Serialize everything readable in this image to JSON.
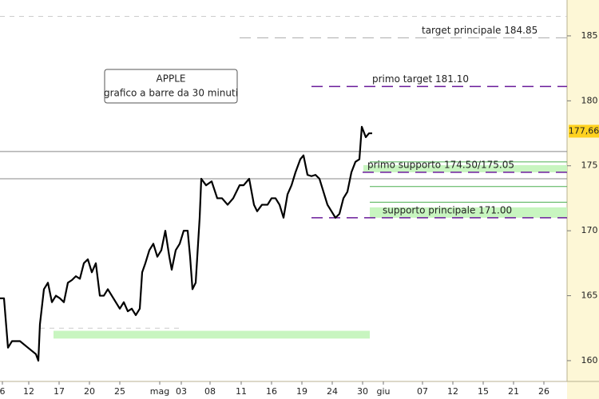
{
  "chart_data": {
    "type": "line",
    "title": "APPLE",
    "subtitle": "grafico a barre da 30 minuti",
    "x": [
      0,
      0.5,
      1,
      1.5,
      2.5,
      3.5,
      4.5,
      4.8,
      5,
      5.5,
      6,
      6.5,
      7,
      7.5,
      8,
      8.5,
      9,
      9.5,
      10,
      10.5,
      11,
      11.5,
      12,
      12.5,
      13,
      13.5,
      14,
      14.5,
      15,
      15.5,
      16,
      16.5,
      17,
      17.5,
      17.8,
      18.2,
      18.7,
      19.2,
      19.7,
      20.2,
      20.7,
      21.2,
      21.5,
      22,
      22.5,
      23,
      23.5,
      23.8,
      24.1,
      24.5,
      25,
      25.2,
      25.8,
      26.5,
      27.2,
      27.8,
      28.5,
      29.2,
      30,
      30.5,
      31.2,
      31.8,
      32.2,
      32.8,
      33.5,
      34,
      34.5,
      35,
      35.5,
      36,
      36.5,
      37,
      37.6,
      38,
      38.5,
      39,
      39.5,
      40,
      40.5,
      41,
      41.5,
      42,
      42.5,
      43,
      43.5,
      44,
      44.5,
      45,
      45.3,
      45.8,
      46.2,
      46.6
    ],
    "series": [
      {
        "name": "APPLE",
        "color": "#000000",
        "values": [
          164.8,
          164.8,
          161,
          161.5,
          161.5,
          161,
          160.5,
          160,
          162.8,
          165.5,
          166,
          164.5,
          165,
          164.8,
          164.5,
          166,
          166.2,
          166.5,
          166.3,
          167.5,
          167.8,
          166.8,
          167.5,
          165,
          165,
          165.5,
          165,
          164.5,
          164,
          164.5,
          163.8,
          164,
          163.5,
          164,
          166.8,
          167.5,
          168.5,
          169,
          168,
          168.5,
          170,
          168,
          167,
          168.5,
          169,
          170,
          170,
          168,
          165.5,
          166,
          171,
          174,
          173.5,
          173.8,
          172.5,
          172.5,
          172,
          172.5,
          173.5,
          173.5,
          174,
          172,
          171.5,
          172,
          172,
          172.5,
          172.5,
          172,
          171,
          172.8,
          173.5,
          174.5,
          175.5,
          175.8,
          174.3,
          174.2,
          174.3,
          174,
          173,
          172,
          171.5,
          171,
          171.3,
          172.5,
          173,
          174.5,
          175.3,
          175.5,
          178,
          177.2,
          177.5,
          177.5
        ]
      }
    ],
    "xlim": [
      0,
      71
    ],
    "xticks": [
      {
        "value": 0.3,
        "label": "6"
      },
      {
        "value": 3.6,
        "label": "12"
      },
      {
        "value": 7.4,
        "label": "17"
      },
      {
        "value": 11.2,
        "label": "20"
      },
      {
        "value": 15,
        "label": "25"
      },
      {
        "value": 20,
        "label": "mag"
      },
      {
        "value": 22.7,
        "label": "03"
      },
      {
        "value": 26.3,
        "label": "08"
      },
      {
        "value": 30.2,
        "label": "11"
      },
      {
        "value": 34,
        "label": "16"
      },
      {
        "value": 37.8,
        "label": "19"
      },
      {
        "value": 41.6,
        "label": "24"
      },
      {
        "value": 45.4,
        "label": "30"
      },
      {
        "value": 48,
        "label": "giu"
      },
      {
        "value": 52.9,
        "label": "07"
      },
      {
        "value": 56.7,
        "label": "12"
      },
      {
        "value": 60.5,
        "label": "15"
      },
      {
        "value": 64.3,
        "label": "21"
      },
      {
        "value": 68.1,
        "label": "26"
      }
    ],
    "ylim": [
      158.4,
      187.76
    ],
    "yticks": [
      160,
      165,
      170,
      175,
      180,
      185
    ],
    "last_price": {
      "value": 177.66,
      "label": "177,66"
    },
    "levels": [
      {
        "label": "target principale 184.85",
        "value": 184.85,
        "color": "#aaaaaa",
        "x_from": 30
      },
      {
        "label": "primo target 181.10",
        "value": 181.1,
        "color": "#6a1b9a",
        "x_from": 39
      },
      {
        "label": "primo supporto 174.50/175.05",
        "value": 174.5,
        "color": "#6a1b9a",
        "x_from": 45.4
      },
      {
        "label": "supporto principale 171.00",
        "value": 171,
        "color": "#6a1b9a",
        "x_from": 39
      }
    ],
    "lines": [
      186.5,
      176.1,
      174,
      175.3,
      173.4,
      172.2,
      162.5
    ],
    "bands": [
      {
        "from": 174.5,
        "to": 175.05,
        "x_from": 45.5,
        "color": "#c8f5c0"
      },
      {
        "from": 171,
        "to": 171.8,
        "x_from": 46.3,
        "color": "#c8f5c0"
      },
      {
        "from": 161.7,
        "to": 162.3,
        "x_from": 6.7,
        "x_to": 46.3,
        "color": "#c8f5c0"
      }
    ]
  }
}
